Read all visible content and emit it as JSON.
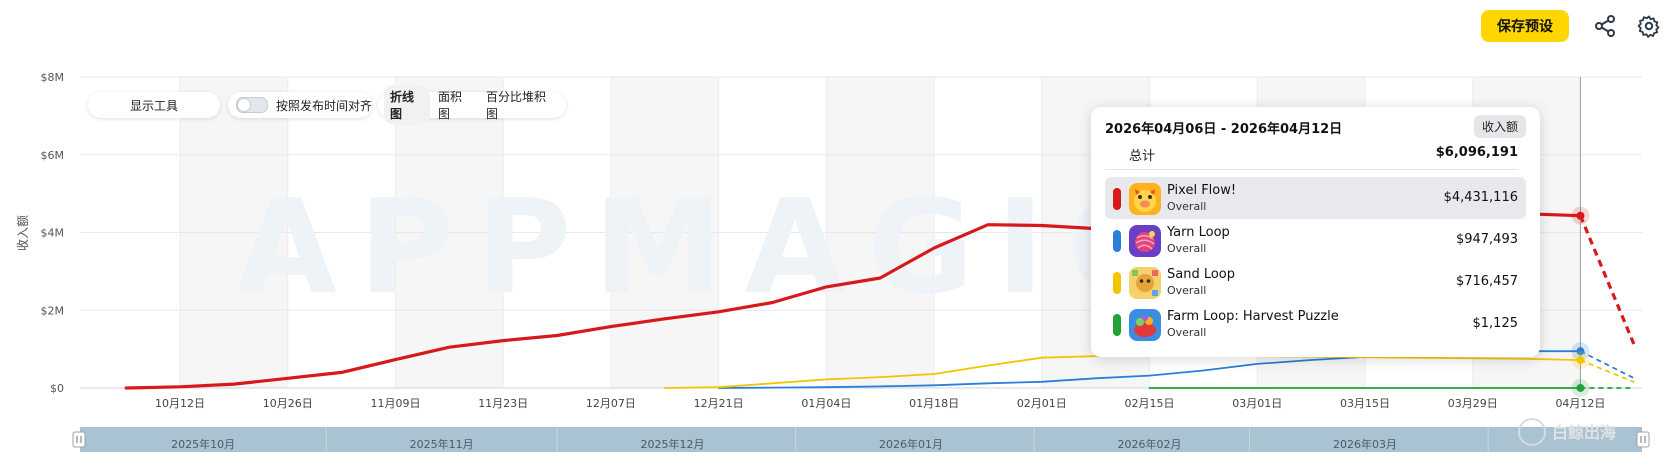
{
  "header": {
    "save_label": "保存预设",
    "share_icon": "share-icon",
    "settings_icon": "gear-icon"
  },
  "toolbar": {
    "tools_label": "显示工具",
    "align_label": "按照发布时间对齐",
    "chart_types": [
      "折线图",
      "面积图",
      "百分比堆积图"
    ],
    "active_type": "折线图"
  },
  "watermark": {
    "text": "APPMAGIC",
    "corner_text": "白鲸出海"
  },
  "tooltip": {
    "date_range": "2026年04月06日 - 2026年04月12日",
    "metric_badge": "收入额",
    "total_label": "总计",
    "total_value": "$6,096,191",
    "rows": [
      {
        "name": "Pixel Flow!",
        "sub": "Overall",
        "value": "$4,431,116",
        "color": "#d7191c",
        "icon": "pig-app-icon"
      },
      {
        "name": "Yarn Loop",
        "sub": "Overall",
        "value": "$947,493",
        "color": "#2a7fd8",
        "icon": "yarn-app-icon"
      },
      {
        "name": "Sand Loop",
        "sub": "Overall",
        "value": "$716,457",
        "color": "#f2c500",
        "icon": "sand-app-icon"
      },
      {
        "name": "Farm Loop: Harvest Puzzle",
        "sub": "Overall",
        "value": "$1,125",
        "color": "#22a039",
        "icon": "farm-app-icon"
      }
    ]
  },
  "chart_data": {
    "type": "line",
    "ylabel": "收入额",
    "ylim": [
      0,
      8000000
    ],
    "y_ticks": [
      0,
      2000000,
      4000000,
      6000000,
      8000000
    ],
    "y_tick_labels": [
      "$0",
      "$2M",
      "$4M",
      "$6M",
      "$8M"
    ],
    "x_range": [
      "2025-09-29",
      "2026-04-20"
    ],
    "x_ticks": [
      "2025-10-12",
      "2025-10-26",
      "2025-11-09",
      "2025-11-23",
      "2025-12-07",
      "2025-12-21",
      "2026-01-04",
      "2026-01-18",
      "2026-02-01",
      "2026-02-15",
      "2026-03-01",
      "2026-03-15",
      "2026-03-29",
      "2026-04-12"
    ],
    "x_tick_labels": [
      "10月12日",
      "10月26日",
      "11月09日",
      "11月23日",
      "12月07日",
      "12月21日",
      "01月04日",
      "01月18日",
      "02月01日",
      "02月15日",
      "03月01日",
      "03月15日",
      "03月29日",
      "04月12日"
    ],
    "grid": true,
    "shaded_weeks": true,
    "hover_date": "2026-04-12",
    "series": [
      {
        "name": "Pixel Flow!",
        "color": "#d7191c",
        "points": [
          [
            "2025-10-05",
            0
          ],
          [
            "2025-10-12",
            30000
          ],
          [
            "2025-10-19",
            100000
          ],
          [
            "2025-10-26",
            250000
          ],
          [
            "2025-11-02",
            400000
          ],
          [
            "2025-11-09",
            730000
          ],
          [
            "2025-11-16",
            1050000
          ],
          [
            "2025-11-23",
            1220000
          ],
          [
            "2025-11-30",
            1350000
          ],
          [
            "2025-12-07",
            1580000
          ],
          [
            "2025-12-14",
            1780000
          ],
          [
            "2025-12-21",
            1960000
          ],
          [
            "2025-12-28",
            2200000
          ],
          [
            "2026-01-04",
            2600000
          ],
          [
            "2026-01-11",
            2830000
          ],
          [
            "2026-01-18",
            3600000
          ],
          [
            "2026-01-25",
            4200000
          ],
          [
            "2026-02-01",
            4180000
          ],
          [
            "2026-02-08",
            4100000
          ],
          [
            "2026-04-05",
            4480000
          ],
          [
            "2026-04-12",
            4431116
          ]
        ],
        "projection": [
          [
            "2026-04-12",
            4431116
          ],
          [
            "2026-04-19",
            1100000
          ]
        ]
      },
      {
        "name": "Yarn Loop",
        "color": "#2a7fd8",
        "points": [
          [
            "2025-12-21",
            0
          ],
          [
            "2025-12-28",
            10000
          ],
          [
            "2026-01-04",
            20000
          ],
          [
            "2026-01-11",
            40000
          ],
          [
            "2026-01-18",
            70000
          ],
          [
            "2026-01-25",
            120000
          ],
          [
            "2026-02-01",
            160000
          ],
          [
            "2026-02-08",
            250000
          ],
          [
            "2026-02-15",
            320000
          ],
          [
            "2026-02-22",
            450000
          ],
          [
            "2026-03-01",
            620000
          ],
          [
            "2026-03-08",
            720000
          ],
          [
            "2026-03-15",
            800000
          ],
          [
            "2026-04-05",
            950000
          ],
          [
            "2026-04-12",
            947493
          ]
        ],
        "projection": [
          [
            "2026-04-12",
            947493
          ],
          [
            "2026-04-19",
            250000
          ]
        ]
      },
      {
        "name": "Sand Loop",
        "color": "#f2c500",
        "points": [
          [
            "2025-12-14",
            0
          ],
          [
            "2025-12-21",
            20000
          ],
          [
            "2025-12-28",
            120000
          ],
          [
            "2026-01-04",
            220000
          ],
          [
            "2026-01-11",
            280000
          ],
          [
            "2026-01-18",
            360000
          ],
          [
            "2026-01-25",
            580000
          ],
          [
            "2026-02-01",
            780000
          ],
          [
            "2026-02-08",
            820000
          ],
          [
            "2026-02-15",
            850000
          ],
          [
            "2026-04-05",
            750000
          ],
          [
            "2026-04-12",
            716457
          ]
        ],
        "projection": [
          [
            "2026-04-12",
            716457
          ],
          [
            "2026-04-19",
            150000
          ]
        ]
      },
      {
        "name": "Farm Loop: Harvest Puzzle",
        "color": "#22a039",
        "points": [
          [
            "2026-02-15",
            0
          ],
          [
            "2026-03-01",
            500
          ],
          [
            "2026-03-15",
            800
          ],
          [
            "2026-03-29",
            1000
          ],
          [
            "2026-04-12",
            1125
          ]
        ],
        "projection": [
          [
            "2026-04-12",
            1125
          ],
          [
            "2026-04-19",
            0
          ]
        ]
      }
    ]
  },
  "navigator": {
    "labels": [
      "2025年10月",
      "2025年11月",
      "2025年12月",
      "2026年01月",
      "2026年02月",
      "2026年03月"
    ],
    "months": [
      "2025-10-15",
      "2025-11-15",
      "2025-12-15",
      "2026-01-15",
      "2026-02-15",
      "2026-03-15"
    ],
    "bands": [
      "2025-10-31",
      "2025-11-30",
      "2025-12-31",
      "2026-01-31",
      "2026-02-28",
      "2026-03-31"
    ]
  }
}
